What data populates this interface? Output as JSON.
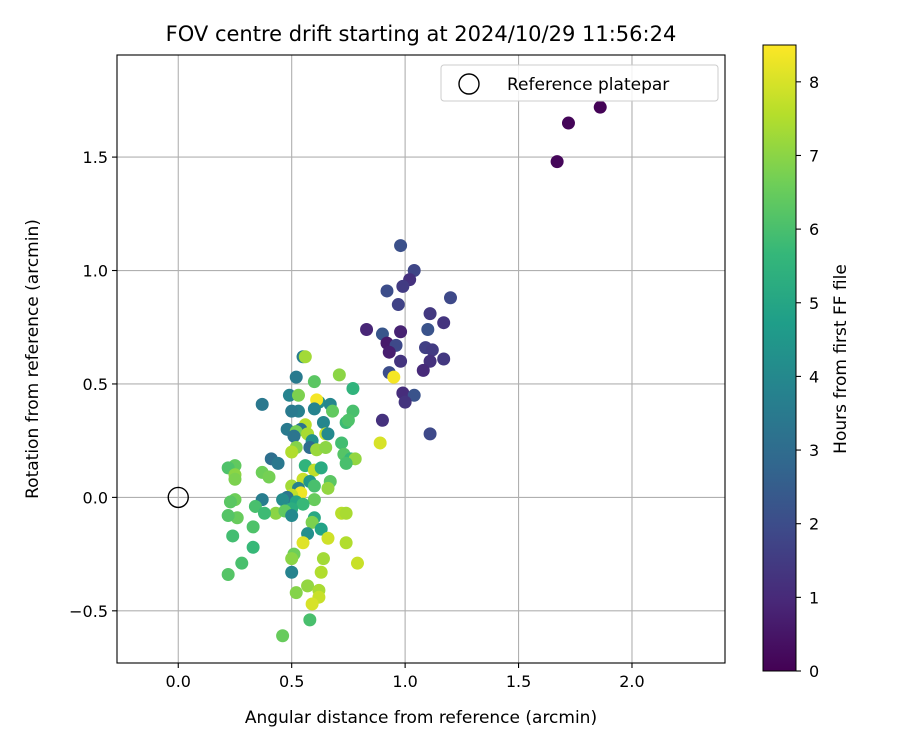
{
  "chart_data": {
    "type": "scatter",
    "title": "FOV centre drift starting at 2024/10/29 11:56:24",
    "xlabel": "Angular distance from reference (arcmin)",
    "ylabel": "Rotation from reference (arcmin)",
    "xlim": [
      -0.27,
      2.41
    ],
    "ylim": [
      -0.73,
      1.95
    ],
    "xticks": [
      0.0,
      0.5,
      1.0,
      1.5,
      2.0
    ],
    "xtick_labels": [
      "0.0",
      "0.5",
      "1.0",
      "1.5",
      "2.0"
    ],
    "yticks": [
      -0.5,
      0.0,
      0.5,
      1.0,
      1.5
    ],
    "ytick_labels": [
      "−0.5",
      "0.0",
      "0.5",
      "1.0",
      "1.5"
    ],
    "grid": true,
    "legend": {
      "placement": "top-right",
      "entries": [
        "Reference platepar"
      ]
    },
    "reference_point": {
      "name": "Reference platepar",
      "x": 0.0,
      "y": 0.0,
      "marker": "hollow-circle",
      "color": "#000000"
    },
    "colorbar": {
      "label": "Hours from first FF file",
      "min": 0,
      "max": 8.5,
      "ticks": [
        0,
        1,
        2,
        3,
        4,
        5,
        6,
        7,
        8
      ],
      "tick_labels": [
        "0",
        "1",
        "2",
        "3",
        "4",
        "5",
        "6",
        "7",
        "8"
      ],
      "colormap": "viridis",
      "stops": [
        "#440154",
        "#482878",
        "#3e4989",
        "#31688e",
        "#26828e",
        "#1f9e89",
        "#35b779",
        "#6ece58",
        "#b5de2b",
        "#fde725"
      ]
    },
    "points": [
      {
        "x": 1.86,
        "y": 1.72,
        "c": 0.05
      },
      {
        "x": 1.72,
        "y": 1.65,
        "c": 0.1
      },
      {
        "x": 1.67,
        "y": 1.48,
        "c": 0.15
      },
      {
        "x": 0.98,
        "y": 1.11,
        "c": 2.1
      },
      {
        "x": 1.04,
        "y": 1.0,
        "c": 1.8
      },
      {
        "x": 1.02,
        "y": 0.96,
        "c": 1.2
      },
      {
        "x": 0.99,
        "y": 0.93,
        "c": 1.5
      },
      {
        "x": 0.92,
        "y": 0.91,
        "c": 2.0
      },
      {
        "x": 1.2,
        "y": 0.88,
        "c": 1.9
      },
      {
        "x": 0.97,
        "y": 0.85,
        "c": 1.7
      },
      {
        "x": 1.11,
        "y": 0.81,
        "c": 1.4
      },
      {
        "x": 1.17,
        "y": 0.77,
        "c": 1.3
      },
      {
        "x": 0.83,
        "y": 0.74,
        "c": 0.9
      },
      {
        "x": 1.1,
        "y": 0.74,
        "c": 2.2
      },
      {
        "x": 0.98,
        "y": 0.73,
        "c": 0.8
      },
      {
        "x": 0.9,
        "y": 0.72,
        "c": 2.3
      },
      {
        "x": 0.92,
        "y": 0.68,
        "c": 0.6
      },
      {
        "x": 0.96,
        "y": 0.67,
        "c": 1.9
      },
      {
        "x": 1.09,
        "y": 0.66,
        "c": 1.6
      },
      {
        "x": 1.12,
        "y": 0.65,
        "c": 1.5
      },
      {
        "x": 0.93,
        "y": 0.64,
        "c": 0.7
      },
      {
        "x": 1.17,
        "y": 0.61,
        "c": 1.4
      },
      {
        "x": 0.98,
        "y": 0.6,
        "c": 1.3
      },
      {
        "x": 1.11,
        "y": 0.6,
        "c": 1.2
      },
      {
        "x": 1.08,
        "y": 0.56,
        "c": 1.0
      },
      {
        "x": 0.93,
        "y": 0.55,
        "c": 2.0
      },
      {
        "x": 0.95,
        "y": 0.53,
        "c": 8.4
      },
      {
        "x": 0.99,
        "y": 0.46,
        "c": 1.1
      },
      {
        "x": 1.04,
        "y": 0.45,
        "c": 2.2
      },
      {
        "x": 1.0,
        "y": 0.42,
        "c": 1.3
      },
      {
        "x": 0.9,
        "y": 0.34,
        "c": 1.2
      },
      {
        "x": 1.11,
        "y": 0.28,
        "c": 1.9
      },
      {
        "x": 0.89,
        "y": 0.24,
        "c": 8.0
      },
      {
        "x": 0.55,
        "y": 0.62,
        "c": 3.6
      },
      {
        "x": 0.56,
        "y": 0.62,
        "c": 7.3
      },
      {
        "x": 0.71,
        "y": 0.54,
        "c": 7.0
      },
      {
        "x": 0.52,
        "y": 0.53,
        "c": 3.5
      },
      {
        "x": 0.6,
        "y": 0.51,
        "c": 6.3
      },
      {
        "x": 0.77,
        "y": 0.48,
        "c": 5.5
      },
      {
        "x": 0.49,
        "y": 0.45,
        "c": 3.8
      },
      {
        "x": 0.53,
        "y": 0.45,
        "c": 6.8
      },
      {
        "x": 0.62,
        "y": 0.42,
        "c": 4.2
      },
      {
        "x": 0.61,
        "y": 0.43,
        "c": 8.4
      },
      {
        "x": 0.67,
        "y": 0.41,
        "c": 3.9
      },
      {
        "x": 0.37,
        "y": 0.41,
        "c": 3.4
      },
      {
        "x": 0.53,
        "y": 0.38,
        "c": 3.7
      },
      {
        "x": 0.5,
        "y": 0.38,
        "c": 3.5
      },
      {
        "x": 0.6,
        "y": 0.39,
        "c": 3.8
      },
      {
        "x": 0.68,
        "y": 0.38,
        "c": 6.4
      },
      {
        "x": 0.77,
        "y": 0.38,
        "c": 6.0
      },
      {
        "x": 0.64,
        "y": 0.33,
        "c": 3.9
      },
      {
        "x": 0.74,
        "y": 0.33,
        "c": 5.8
      },
      {
        "x": 0.75,
        "y": 0.34,
        "c": 6.1
      },
      {
        "x": 0.48,
        "y": 0.3,
        "c": 3.5
      },
      {
        "x": 0.56,
        "y": 0.32,
        "c": 7.6
      },
      {
        "x": 0.54,
        "y": 0.3,
        "c": 3.2
      },
      {
        "x": 0.52,
        "y": 0.29,
        "c": 6.7
      },
      {
        "x": 0.57,
        "y": 0.28,
        "c": 7.4
      },
      {
        "x": 0.65,
        "y": 0.28,
        "c": 7.8
      },
      {
        "x": 0.66,
        "y": 0.28,
        "c": 4.0
      },
      {
        "x": 0.51,
        "y": 0.27,
        "c": 3.3
      },
      {
        "x": 0.59,
        "y": 0.25,
        "c": 4.3
      },
      {
        "x": 0.72,
        "y": 0.24,
        "c": 5.9
      },
      {
        "x": 0.52,
        "y": 0.22,
        "c": 6.9
      },
      {
        "x": 0.5,
        "y": 0.2,
        "c": 7.5
      },
      {
        "x": 0.58,
        "y": 0.22,
        "c": 3.0
      },
      {
        "x": 0.61,
        "y": 0.21,
        "c": 7.2
      },
      {
        "x": 0.65,
        "y": 0.22,
        "c": 7.0
      },
      {
        "x": 0.73,
        "y": 0.19,
        "c": 6.2
      },
      {
        "x": 0.76,
        "y": 0.17,
        "c": 5.7
      },
      {
        "x": 0.78,
        "y": 0.17,
        "c": 7.1
      },
      {
        "x": 0.41,
        "y": 0.17,
        "c": 3.1
      },
      {
        "x": 0.56,
        "y": 0.14,
        "c": 5.5
      },
      {
        "x": 0.6,
        "y": 0.12,
        "c": 7.7
      },
      {
        "x": 0.63,
        "y": 0.13,
        "c": 5.2
      },
      {
        "x": 0.74,
        "y": 0.15,
        "c": 6.0
      },
      {
        "x": 0.44,
        "y": 0.15,
        "c": 3.4
      },
      {
        "x": 0.25,
        "y": 0.14,
        "c": 6.4
      },
      {
        "x": 0.22,
        "y": 0.13,
        "c": 6.1
      },
      {
        "x": 0.37,
        "y": 0.11,
        "c": 6.6
      },
      {
        "x": 0.25,
        "y": 0.1,
        "c": 7.0
      },
      {
        "x": 0.4,
        "y": 0.09,
        "c": 6.7
      },
      {
        "x": 0.55,
        "y": 0.08,
        "c": 7.8
      },
      {
        "x": 0.58,
        "y": 0.07,
        "c": 4.5
      },
      {
        "x": 0.67,
        "y": 0.07,
        "c": 6.3
      },
      {
        "x": 0.5,
        "y": 0.05,
        "c": 7.3
      },
      {
        "x": 0.53,
        "y": 0.04,
        "c": 3.7
      },
      {
        "x": 0.6,
        "y": 0.05,
        "c": 6.0
      },
      {
        "x": 0.66,
        "y": 0.04,
        "c": 7.1
      },
      {
        "x": 0.25,
        "y": 0.08,
        "c": 6.8
      },
      {
        "x": 0.54,
        "y": 0.02,
        "c": 8.3
      },
      {
        "x": 0.5,
        "y": 0.01,
        "c": 7.7
      },
      {
        "x": 0.48,
        "y": 0.0,
        "c": 3.3
      },
      {
        "x": 0.46,
        "y": -0.01,
        "c": 4.1
      },
      {
        "x": 0.52,
        "y": -0.02,
        "c": 5.0
      },
      {
        "x": 0.6,
        "y": -0.01,
        "c": 6.5
      },
      {
        "x": 0.37,
        "y": -0.01,
        "c": 3.6
      },
      {
        "x": 0.25,
        "y": -0.01,
        "c": 6.6
      },
      {
        "x": 0.23,
        "y": -0.02,
        "c": 6.3
      },
      {
        "x": 0.55,
        "y": -0.03,
        "c": 5.7
      },
      {
        "x": 0.34,
        "y": -0.04,
        "c": 6.0
      },
      {
        "x": 0.43,
        "y": -0.07,
        "c": 7.0
      },
      {
        "x": 0.5,
        "y": -0.05,
        "c": 5.3
      },
      {
        "x": 0.47,
        "y": -0.06,
        "c": 6.4
      },
      {
        "x": 0.5,
        "y": -0.08,
        "c": 4.0
      },
      {
        "x": 0.26,
        "y": -0.09,
        "c": 6.5
      },
      {
        "x": 0.38,
        "y": -0.07,
        "c": 5.8
      },
      {
        "x": 0.22,
        "y": -0.08,
        "c": 6.2
      },
      {
        "x": 0.6,
        "y": -0.09,
        "c": 5.1
      },
      {
        "x": 0.72,
        "y": -0.07,
        "c": 7.6
      },
      {
        "x": 0.74,
        "y": -0.07,
        "c": 7.4
      },
      {
        "x": 0.59,
        "y": -0.11,
        "c": 6.8
      },
      {
        "x": 0.33,
        "y": -0.13,
        "c": 6.1
      },
      {
        "x": 0.63,
        "y": -0.14,
        "c": 4.9
      },
      {
        "x": 0.57,
        "y": -0.16,
        "c": 4.2
      },
      {
        "x": 0.24,
        "y": -0.17,
        "c": 5.9
      },
      {
        "x": 0.66,
        "y": -0.18,
        "c": 7.9
      },
      {
        "x": 0.74,
        "y": -0.2,
        "c": 7.5
      },
      {
        "x": 0.55,
        "y": -0.2,
        "c": 8.1
      },
      {
        "x": 0.33,
        "y": -0.22,
        "c": 5.7
      },
      {
        "x": 0.51,
        "y": -0.25,
        "c": 6.6
      },
      {
        "x": 0.64,
        "y": -0.27,
        "c": 7.3
      },
      {
        "x": 0.5,
        "y": -0.27,
        "c": 7.0
      },
      {
        "x": 0.28,
        "y": -0.29,
        "c": 6.0
      },
      {
        "x": 0.79,
        "y": -0.29,
        "c": 7.8
      },
      {
        "x": 0.5,
        "y": -0.33,
        "c": 3.8
      },
      {
        "x": 0.63,
        "y": -0.33,
        "c": 7.5
      },
      {
        "x": 0.22,
        "y": -0.34,
        "c": 6.2
      },
      {
        "x": 0.57,
        "y": -0.39,
        "c": 7.1
      },
      {
        "x": 0.62,
        "y": -0.41,
        "c": 7.4
      },
      {
        "x": 0.52,
        "y": -0.42,
        "c": 6.9
      },
      {
        "x": 0.62,
        "y": -0.44,
        "c": 7.8
      },
      {
        "x": 0.59,
        "y": -0.47,
        "c": 8.0
      },
      {
        "x": 0.58,
        "y": -0.54,
        "c": 6.0
      },
      {
        "x": 0.46,
        "y": -0.61,
        "c": 6.5
      }
    ]
  }
}
